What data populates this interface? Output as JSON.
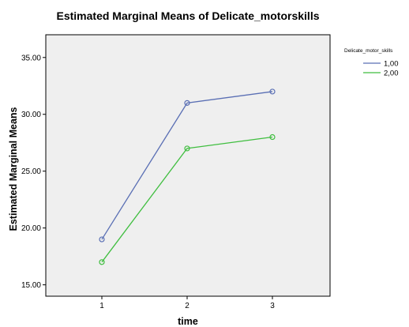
{
  "chart_data": {
    "type": "line",
    "title": "Estimated Marginal Means of Delicate_motorskills",
    "xlabel": "time",
    "ylabel": "Estimated Marginal Means",
    "categories": [
      "1",
      "2",
      "3"
    ],
    "ylim": [
      14.0,
      37.0
    ],
    "yticks": [
      "15.00",
      "20.00",
      "25.00",
      "30.00",
      "35.00"
    ],
    "ytick_values": [
      15,
      20,
      25,
      30,
      35
    ],
    "grid": false,
    "legend": {
      "title": "Delicate_motor_skills",
      "placement": "top-right"
    },
    "series": [
      {
        "name": "1,00",
        "color": "#5a6fb4",
        "values": [
          19.0,
          31.0,
          32.0
        ]
      },
      {
        "name": "2,00",
        "color": "#3fbe3f",
        "values": [
          17.0,
          27.0,
          28.0
        ]
      }
    ]
  },
  "colors": {
    "plot_background": "#efefef",
    "axis": "#000000"
  }
}
